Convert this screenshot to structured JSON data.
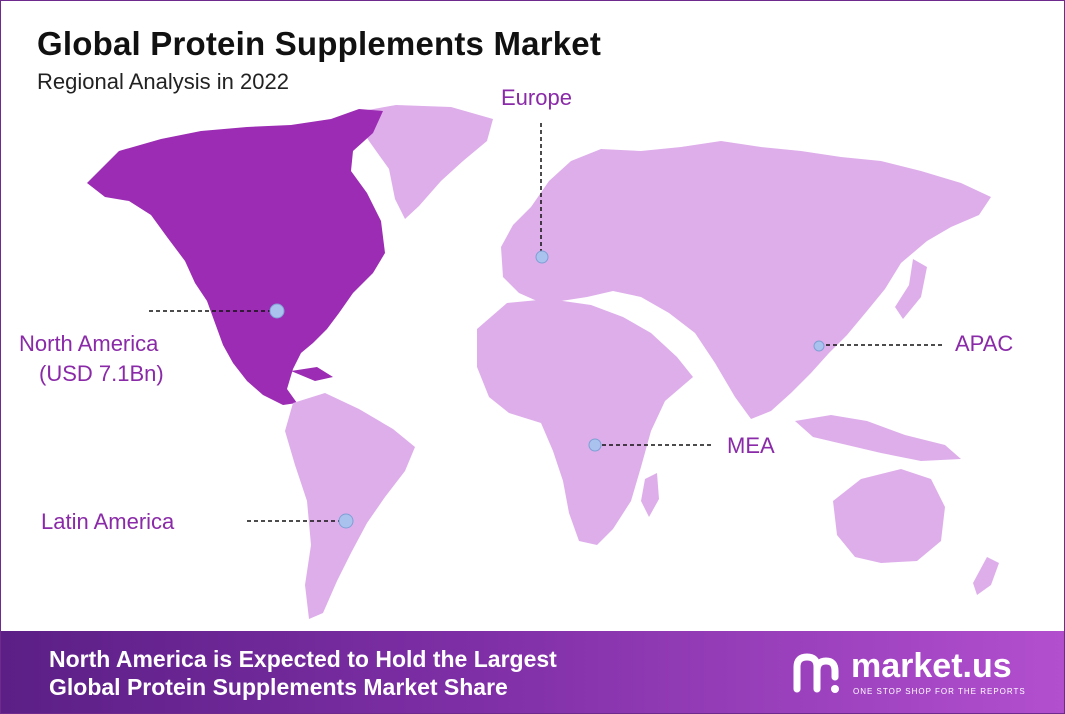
{
  "title": "Global Protein Supplements Market",
  "subtitle": "Regional Analysis in 2022",
  "colors": {
    "highlight_region": "#9b2cb3",
    "other_regions": "#deaeeb",
    "label": "#8a2aa8",
    "marker": "#a9c3ee"
  },
  "regions": [
    {
      "id": "north-america",
      "label": "North America",
      "value_text": "(USD 7.1Bn)",
      "highlighted": true
    },
    {
      "id": "europe",
      "label": "Europe"
    },
    {
      "id": "apac",
      "label": "APAC"
    },
    {
      "id": "mea",
      "label": "MEA"
    },
    {
      "id": "latin-america",
      "label": "Latin America"
    }
  ],
  "footer": {
    "line1": "North America is Expected to Hold the Largest",
    "line2": "Global Protein Supplements Market Share"
  },
  "brand": {
    "name": "market.us",
    "tagline": "ONE STOP SHOP FOR THE REPORTS",
    "icon": "market-us-logo-icon"
  }
}
